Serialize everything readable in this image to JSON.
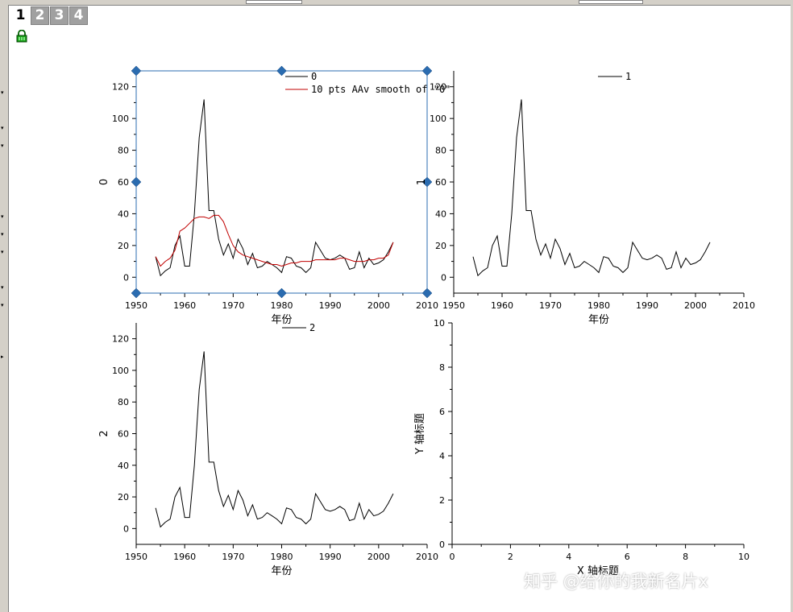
{
  "window": {
    "layer_tabs": [
      {
        "label": "1",
        "active": true
      },
      {
        "label": "2",
        "active": false
      },
      {
        "label": "3",
        "active": false
      },
      {
        "label": "4",
        "active": false
      }
    ],
    "lock_icon": "lock-icon"
  },
  "colors": {
    "data_line": "#000000",
    "smooth_line": "#c00000",
    "selection_box": "#2b6cb0",
    "handle": "#2b6cb0",
    "selected_axis": "#d4a000"
  },
  "watermark": "知乎 @给你的我新名片x",
  "chart_data": [
    {
      "type": "line",
      "layer": 1,
      "selected": true,
      "xlabel": "年份",
      "ylabel": "0",
      "xlim": [
        1950,
        2010
      ],
      "ylim": [
        -10,
        130
      ],
      "xticks": [
        1950,
        1960,
        1970,
        1980,
        1990,
        2000,
        2010
      ],
      "yticks": [
        0,
        20,
        40,
        60,
        80,
        100,
        120
      ],
      "legend": [
        "0",
        "10 pts AAv smooth of \"0\""
      ],
      "series": [
        {
          "name": "0",
          "color": "#000000",
          "x": [
            1954,
            1955,
            1956,
            1957,
            1958,
            1959,
            1960,
            1961,
            1962,
            1963,
            1964,
            1965,
            1966,
            1967,
            1968,
            1969,
            1970,
            1971,
            1972,
            1973,
            1974,
            1975,
            1976,
            1977,
            1978,
            1979,
            1980,
            1981,
            1982,
            1983,
            1984,
            1985,
            1986,
            1987,
            1988,
            1989,
            1990,
            1991,
            1992,
            1993,
            1994,
            1995,
            1996,
            1997,
            1998,
            1999,
            2000,
            2001,
            2002,
            2003
          ],
          "y": [
            13,
            1,
            4,
            6,
            20,
            26,
            7,
            7,
            40,
            88,
            112,
            42,
            42,
            24,
            14,
            21,
            12,
            24,
            18,
            8,
            15,
            6,
            7,
            10,
            8,
            6,
            3,
            13,
            12,
            7,
            6,
            3,
            6,
            22,
            17,
            12,
            11,
            12,
            14,
            12,
            5,
            6,
            16,
            6,
            12,
            8,
            9,
            11,
            16,
            22
          ]
        },
        {
          "name": "10 pts AAv smooth of \"0\"",
          "color": "#c00000",
          "x": [
            1954,
            1955,
            1956,
            1957,
            1958,
            1959,
            1960,
            1961,
            1962,
            1963,
            1964,
            1965,
            1966,
            1967,
            1968,
            1969,
            1970,
            1971,
            1972,
            1973,
            1974,
            1975,
            1976,
            1977,
            1978,
            1979,
            1980,
            1981,
            1982,
            1983,
            1984,
            1985,
            1986,
            1987,
            1988,
            1989,
            1990,
            1991,
            1992,
            1993,
            1994,
            1995,
            1996,
            1997,
            1998,
            1999,
            2000,
            2001,
            2002,
            2003
          ],
          "y": [
            13,
            7,
            10,
            12,
            17,
            29,
            31,
            34,
            37,
            38,
            38,
            37,
            39,
            39,
            35,
            27,
            20,
            16,
            14,
            13,
            12,
            11,
            10,
            9,
            8,
            8,
            7,
            8,
            9,
            9,
            10,
            10,
            10,
            11,
            11,
            11,
            11,
            11,
            12,
            12,
            11,
            10,
            10,
            10,
            11,
            11,
            12,
            12,
            14,
            22
          ]
        }
      ]
    },
    {
      "type": "line",
      "layer": 2,
      "xlabel": "年份",
      "ylabel": "1",
      "xlim": [
        1950,
        2010
      ],
      "ylim": [
        -10,
        130
      ],
      "xticks": [
        1950,
        1960,
        1970,
        1980,
        1990,
        2000,
        2010
      ],
      "yticks": [
        0,
        20,
        40,
        60,
        80,
        100,
        120
      ],
      "legend": [
        "1"
      ],
      "series": [
        {
          "name": "1",
          "color": "#000000",
          "x": [
            1954,
            1955,
            1956,
            1957,
            1958,
            1959,
            1960,
            1961,
            1962,
            1963,
            1964,
            1965,
            1966,
            1967,
            1968,
            1969,
            1970,
            1971,
            1972,
            1973,
            1974,
            1975,
            1976,
            1977,
            1978,
            1979,
            1980,
            1981,
            1982,
            1983,
            1984,
            1985,
            1986,
            1987,
            1988,
            1989,
            1990,
            1991,
            1992,
            1993,
            1994,
            1995,
            1996,
            1997,
            1998,
            1999,
            2000,
            2001,
            2002,
            2003
          ],
          "y": [
            13,
            1,
            4,
            6,
            20,
            26,
            7,
            7,
            40,
            88,
            112,
            42,
            42,
            24,
            14,
            21,
            12,
            24,
            18,
            8,
            15,
            6,
            7,
            10,
            8,
            6,
            3,
            13,
            12,
            7,
            6,
            3,
            6,
            22,
            17,
            12,
            11,
            12,
            14,
            12,
            5,
            6,
            16,
            6,
            12,
            8,
            9,
            11,
            16,
            22
          ]
        }
      ]
    },
    {
      "type": "line",
      "layer": 3,
      "xlabel": "年份",
      "ylabel": "2",
      "xlim": [
        1950,
        2010
      ],
      "ylim": [
        -10,
        130
      ],
      "xticks": [
        1950,
        1960,
        1970,
        1980,
        1990,
        2000,
        2010
      ],
      "yticks": [
        0,
        20,
        40,
        60,
        80,
        100,
        120
      ],
      "legend": [
        "2"
      ],
      "series": [
        {
          "name": "2",
          "color": "#000000",
          "x": [
            1954,
            1955,
            1956,
            1957,
            1958,
            1959,
            1960,
            1961,
            1962,
            1963,
            1964,
            1965,
            1966,
            1967,
            1968,
            1969,
            1970,
            1971,
            1972,
            1973,
            1974,
            1975,
            1976,
            1977,
            1978,
            1979,
            1980,
            1981,
            1982,
            1983,
            1984,
            1985,
            1986,
            1987,
            1988,
            1989,
            1990,
            1991,
            1992,
            1993,
            1994,
            1995,
            1996,
            1997,
            1998,
            1999,
            2000,
            2001,
            2002,
            2003
          ],
          "y": [
            13,
            1,
            4,
            6,
            20,
            26,
            7,
            7,
            40,
            88,
            112,
            42,
            42,
            24,
            14,
            21,
            12,
            24,
            18,
            8,
            15,
            6,
            7,
            10,
            8,
            6,
            3,
            13,
            12,
            7,
            6,
            3,
            6,
            22,
            17,
            12,
            11,
            12,
            14,
            12,
            5,
            6,
            16,
            6,
            12,
            8,
            9,
            11,
            16,
            22
          ]
        }
      ]
    },
    {
      "type": "line",
      "layer": 4,
      "xlabel": "X 轴标题",
      "ylabel": "Y 轴标题",
      "xlim": [
        0,
        10
      ],
      "ylim": [
        0,
        10
      ],
      "xticks": [
        0,
        2,
        4,
        6,
        8,
        10
      ],
      "yticks": [
        0,
        2,
        4,
        6,
        8,
        10
      ],
      "legend": [],
      "series": []
    }
  ]
}
